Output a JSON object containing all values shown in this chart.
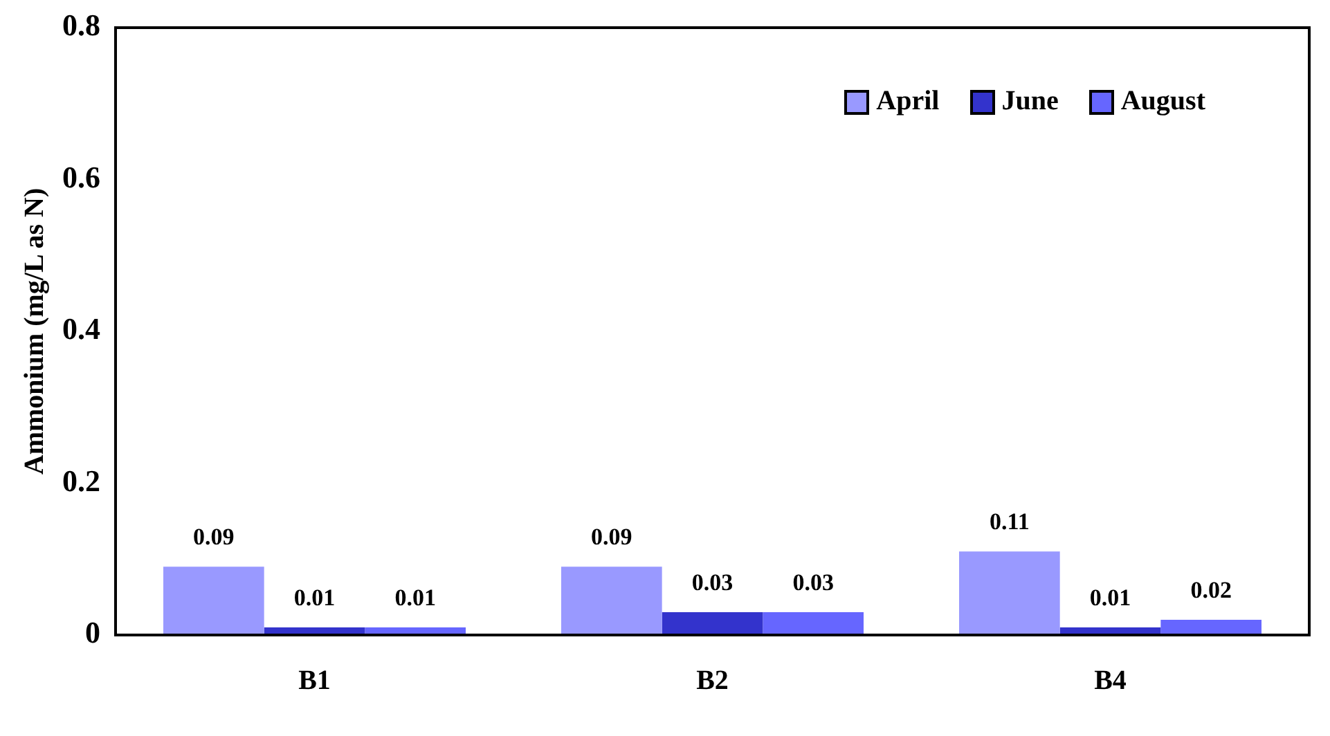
{
  "chart_data": {
    "type": "bar",
    "ylabel": "Ammonium (mg/L as N)",
    "categories": [
      "B1",
      "B2",
      "B4"
    ],
    "series": [
      {
        "name": "April",
        "color": "#9999ff",
        "values": [
          0.09,
          0.09,
          0.11
        ]
      },
      {
        "name": "June",
        "color": "#3333cc",
        "values": [
          0.01,
          0.03,
          0.01
        ]
      },
      {
        "name": "August",
        "color": "#6666ff",
        "values": [
          0.01,
          0.03,
          0.02
        ]
      }
    ],
    "ylim": [
      0,
      0.8
    ],
    "yticks": [
      0,
      0.2,
      0.4,
      0.6,
      0.8
    ],
    "grid": false,
    "legend": "top right",
    "data_labels": true
  }
}
